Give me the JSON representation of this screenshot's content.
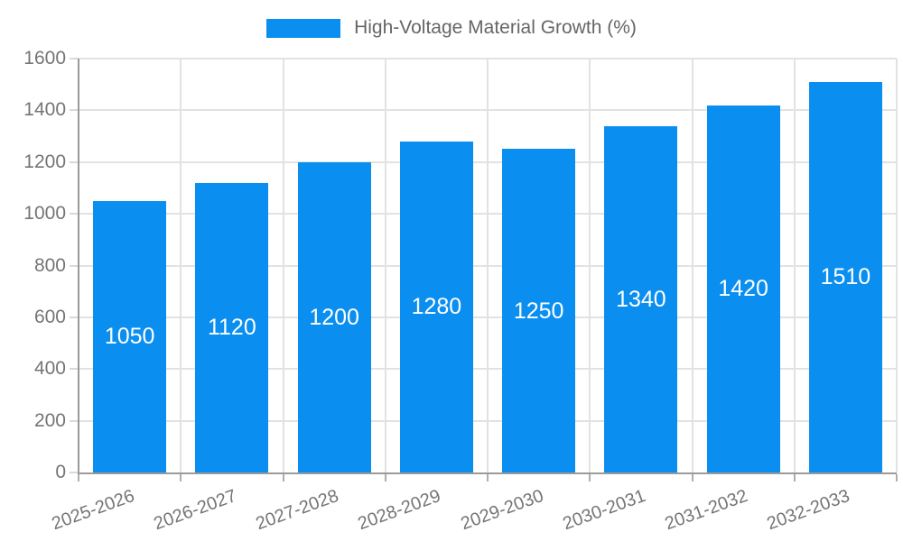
{
  "legend": {
    "label": "High-Voltage Material Growth (%)"
  },
  "chart_data": {
    "type": "bar",
    "title": "High-Voltage Material Growth (%)",
    "categories": [
      "2025-2026",
      "2026-2027",
      "2027-2028",
      "2028-2029",
      "2029-2030",
      "2030-2031",
      "2031-2032",
      "2032-2033"
    ],
    "values": [
      1050,
      1120,
      1200,
      1280,
      1250,
      1340,
      1420,
      1510
    ],
    "value_labels": [
      "1050",
      "1120",
      "1200",
      "1280",
      "1250",
      "1340",
      "1420",
      "1510"
    ],
    "xlabel": "",
    "ylabel": "",
    "ylim": [
      0,
      1600
    ],
    "yticks": [
      0,
      200,
      400,
      600,
      800,
      1000,
      1200,
      1400,
      1600
    ],
    "grid": true,
    "legend_position": "top-center",
    "bar_color": "#0a8ff0",
    "value_label_color": "#ffffff",
    "axis_text_color": "#757575",
    "grid_color": "#e2e2e2",
    "axis_line_color": "#9a9a9a"
  }
}
